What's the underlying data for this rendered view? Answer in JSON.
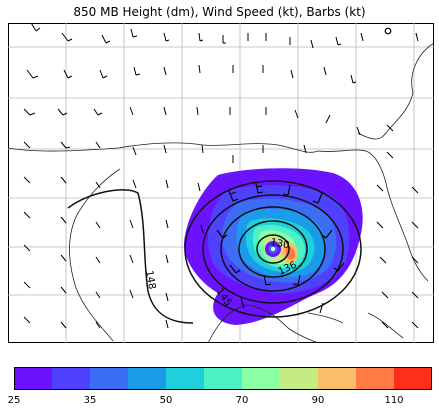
{
  "title": "850 MB Height (dm), Wind Speed (kt), Barbs (kt)",
  "colorbar": {
    "colors": [
      "#6b12ff",
      "#4f42ff",
      "#3c6df5",
      "#1a9cea",
      "#1fcfdc",
      "#4df2c4",
      "#8affa4",
      "#c3ea83",
      "#fbbd68",
      "#ff7a44",
      "#ff2d1c"
    ],
    "tick_labels": [
      "25",
      "35",
      "50",
      "70",
      "90",
      "110"
    ]
  },
  "contours": {
    "labels": [
      "148",
      "145",
      "136",
      "130"
    ]
  },
  "legend_units": "kt"
}
